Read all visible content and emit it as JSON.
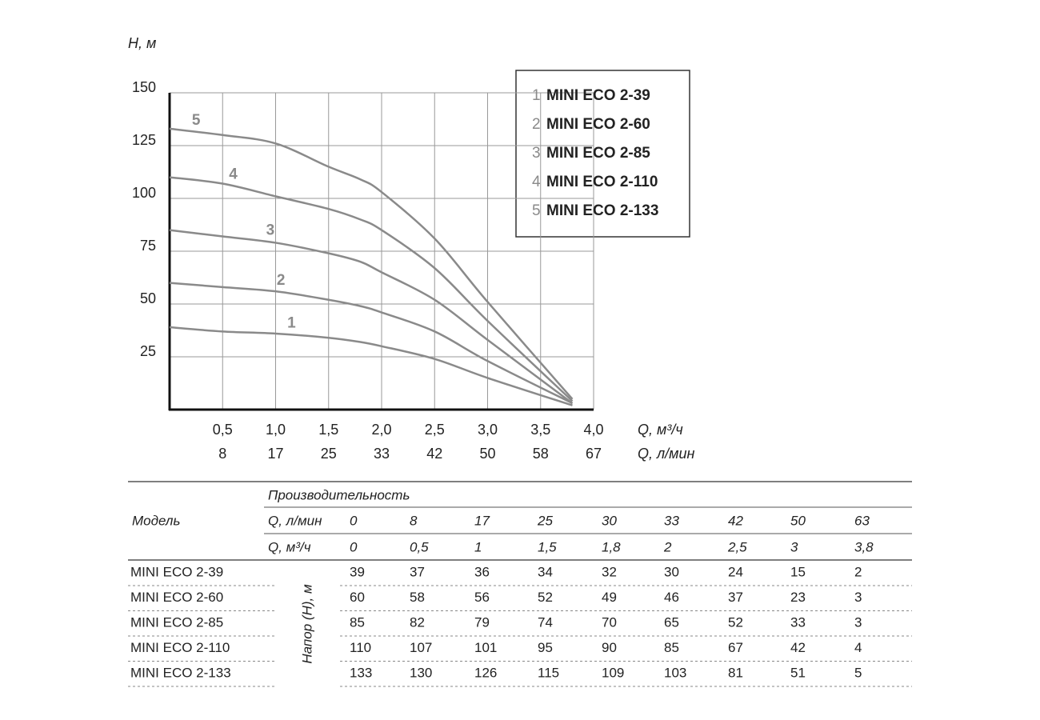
{
  "chart_data": {
    "type": "line",
    "ylabel": "H, м",
    "xlabel": "Q, м³/ч",
    "x2label": "Q, л/мин",
    "x": [
      0,
      0.5,
      1,
      1.5,
      1.8,
      2,
      2.5,
      3,
      3.8
    ],
    "series": [
      {
        "label": "1",
        "name": "MINI ECO 2-39",
        "color": "#8a8a8a",
        "values": [
          39,
          37,
          36,
          34,
          32,
          30,
          24,
          15,
          2
        ]
      },
      {
        "label": "2",
        "name": "MINI ECO 2-60",
        "color": "#8a8a8a",
        "values": [
          60,
          58,
          56,
          52,
          49,
          46,
          37,
          23,
          3
        ]
      },
      {
        "label": "3",
        "name": "MINI ECO 2-85",
        "color": "#8a8a8a",
        "values": [
          85,
          82,
          79,
          74,
          70,
          65,
          52,
          33,
          3
        ]
      },
      {
        "label": "4",
        "name": "MINI ECO 2-110",
        "color": "#8a8a8a",
        "values": [
          110,
          107,
          101,
          95,
          90,
          85,
          67,
          42,
          4
        ]
      },
      {
        "label": "5",
        "name": "MINI ECO 2-133",
        "color": "#8a8a8a",
        "values": [
          133,
          130,
          126,
          115,
          109,
          103,
          81,
          51,
          5
        ]
      }
    ],
    "xlim": [
      0,
      4
    ],
    "ylim": [
      0,
      150
    ],
    "xticks": [
      {
        "value": 0.5,
        "label": "0,5"
      },
      {
        "value": 1,
        "label": "1,0"
      },
      {
        "value": 1.5,
        "label": "1,5"
      },
      {
        "value": 2,
        "label": "2,0"
      },
      {
        "value": 2.5,
        "label": "2,5"
      },
      {
        "value": 3,
        "label": "3,0"
      },
      {
        "value": 3.5,
        "label": "3,5"
      },
      {
        "value": 4,
        "label": "4,0"
      }
    ],
    "x2ticks": [
      8,
      17,
      25,
      33,
      42,
      50,
      58,
      67
    ],
    "yticks": [
      25,
      50,
      75,
      100,
      125,
      150
    ],
    "grid": true,
    "legend": "upper right"
  },
  "table": {
    "title": "Производительность",
    "model_header": "Модель",
    "flow_lpm_label": "Q, л/мин",
    "flow_lpm": [
      0,
      8,
      17,
      25,
      30,
      33,
      42,
      50,
      63
    ],
    "flow_m3h_label": "Q, м³/ч",
    "flow_m3h": [
      "0",
      "0,5",
      "1",
      "1,5",
      "1,8",
      "2",
      "2,5",
      "3",
      "3,8"
    ],
    "head_label": "Напор (H), м",
    "rows": [
      {
        "model": "MINI ECO 2-39",
        "values": [
          39,
          37,
          36,
          34,
          32,
          30,
          24,
          15,
          2
        ]
      },
      {
        "model": "MINI ECO 2-60",
        "values": [
          60,
          58,
          56,
          52,
          49,
          46,
          37,
          23,
          3
        ]
      },
      {
        "model": "MINI ECO 2-85",
        "values": [
          85,
          82,
          79,
          74,
          70,
          65,
          52,
          33,
          3
        ]
      },
      {
        "model": "MINI ECO 2-110",
        "values": [
          110,
          107,
          101,
          95,
          90,
          85,
          67,
          42,
          4
        ]
      },
      {
        "model": "MINI ECO 2-133",
        "values": [
          133,
          130,
          126,
          115,
          109,
          103,
          81,
          51,
          5
        ]
      }
    ]
  }
}
